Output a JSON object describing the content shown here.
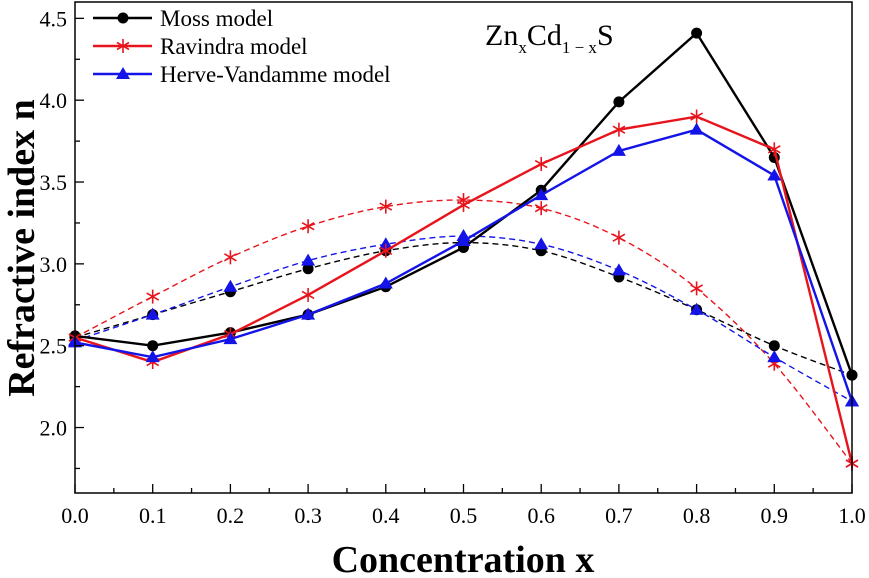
{
  "chart_data": {
    "type": "line",
    "title": "",
    "annotation": {
      "base": "Zn",
      "sub1": "x",
      "mid": "Cd",
      "sub2": "1 − x",
      "end": "S"
    },
    "xlabel": "Concentration x",
    "ylabel": "Refractive index n",
    "xlim": [
      0,
      1
    ],
    "ylim": [
      1.6,
      4.6
    ],
    "xticks": [
      "0.0",
      "0.1",
      "0.2",
      "0.3",
      "0.4",
      "0.5",
      "0.6",
      "0.7",
      "0.8",
      "0.9",
      "1.0"
    ],
    "yticks": [
      "2.0",
      "2.5",
      "3.0",
      "3.5",
      "4.0",
      "4.5"
    ],
    "grid": false,
    "legend_position": "top-left",
    "x": [
      0,
      0.1,
      0.2,
      0.3,
      0.4,
      0.5,
      0.6,
      0.7,
      0.8,
      0.9,
      1.0
    ],
    "series": [
      {
        "name": "Moss model",
        "color": "#000000",
        "marker": "circle",
        "style": "solid",
        "values": [
          2.56,
          2.5,
          2.58,
          2.69,
          2.86,
          3.1,
          3.45,
          3.99,
          4.41,
          3.65,
          2.32
        ]
      },
      {
        "name": "Ravindra model",
        "color": "#e8141c",
        "marker": "star",
        "style": "solid",
        "values": [
          2.55,
          2.4,
          2.57,
          2.81,
          3.08,
          3.36,
          3.61,
          3.82,
          3.9,
          3.7,
          1.78
        ]
      },
      {
        "name": "Herve-Vandamme model",
        "color": "#1414e8",
        "marker": "triangle",
        "style": "solid",
        "values": [
          2.52,
          2.43,
          2.54,
          2.69,
          2.88,
          3.14,
          3.42,
          3.69,
          3.82,
          3.54,
          2.16
        ]
      },
      {
        "name": "Moss model (dashed)",
        "color": "#000000",
        "marker": "circle",
        "style": "dashed",
        "values": [
          2.55,
          2.69,
          2.83,
          2.97,
          3.08,
          3.13,
          3.08,
          2.92,
          2.72,
          2.5,
          2.32
        ]
      },
      {
        "name": "Ravindra model (dashed)",
        "color": "#e8141c",
        "marker": "star",
        "style": "dashed",
        "values": [
          2.55,
          2.8,
          3.04,
          3.23,
          3.35,
          3.39,
          3.34,
          3.16,
          2.85,
          2.39,
          1.78
        ]
      },
      {
        "name": "Herve-Vandamme model (dashed)",
        "color": "#1414e8",
        "marker": "triangle",
        "style": "dashed",
        "values": [
          2.53,
          2.69,
          2.86,
          3.02,
          3.12,
          3.17,
          3.12,
          2.96,
          2.72,
          2.43,
          2.16
        ]
      }
    ],
    "legend": [
      "Moss model",
      "Ravindra model",
      "Herve-Vandamme model"
    ]
  }
}
